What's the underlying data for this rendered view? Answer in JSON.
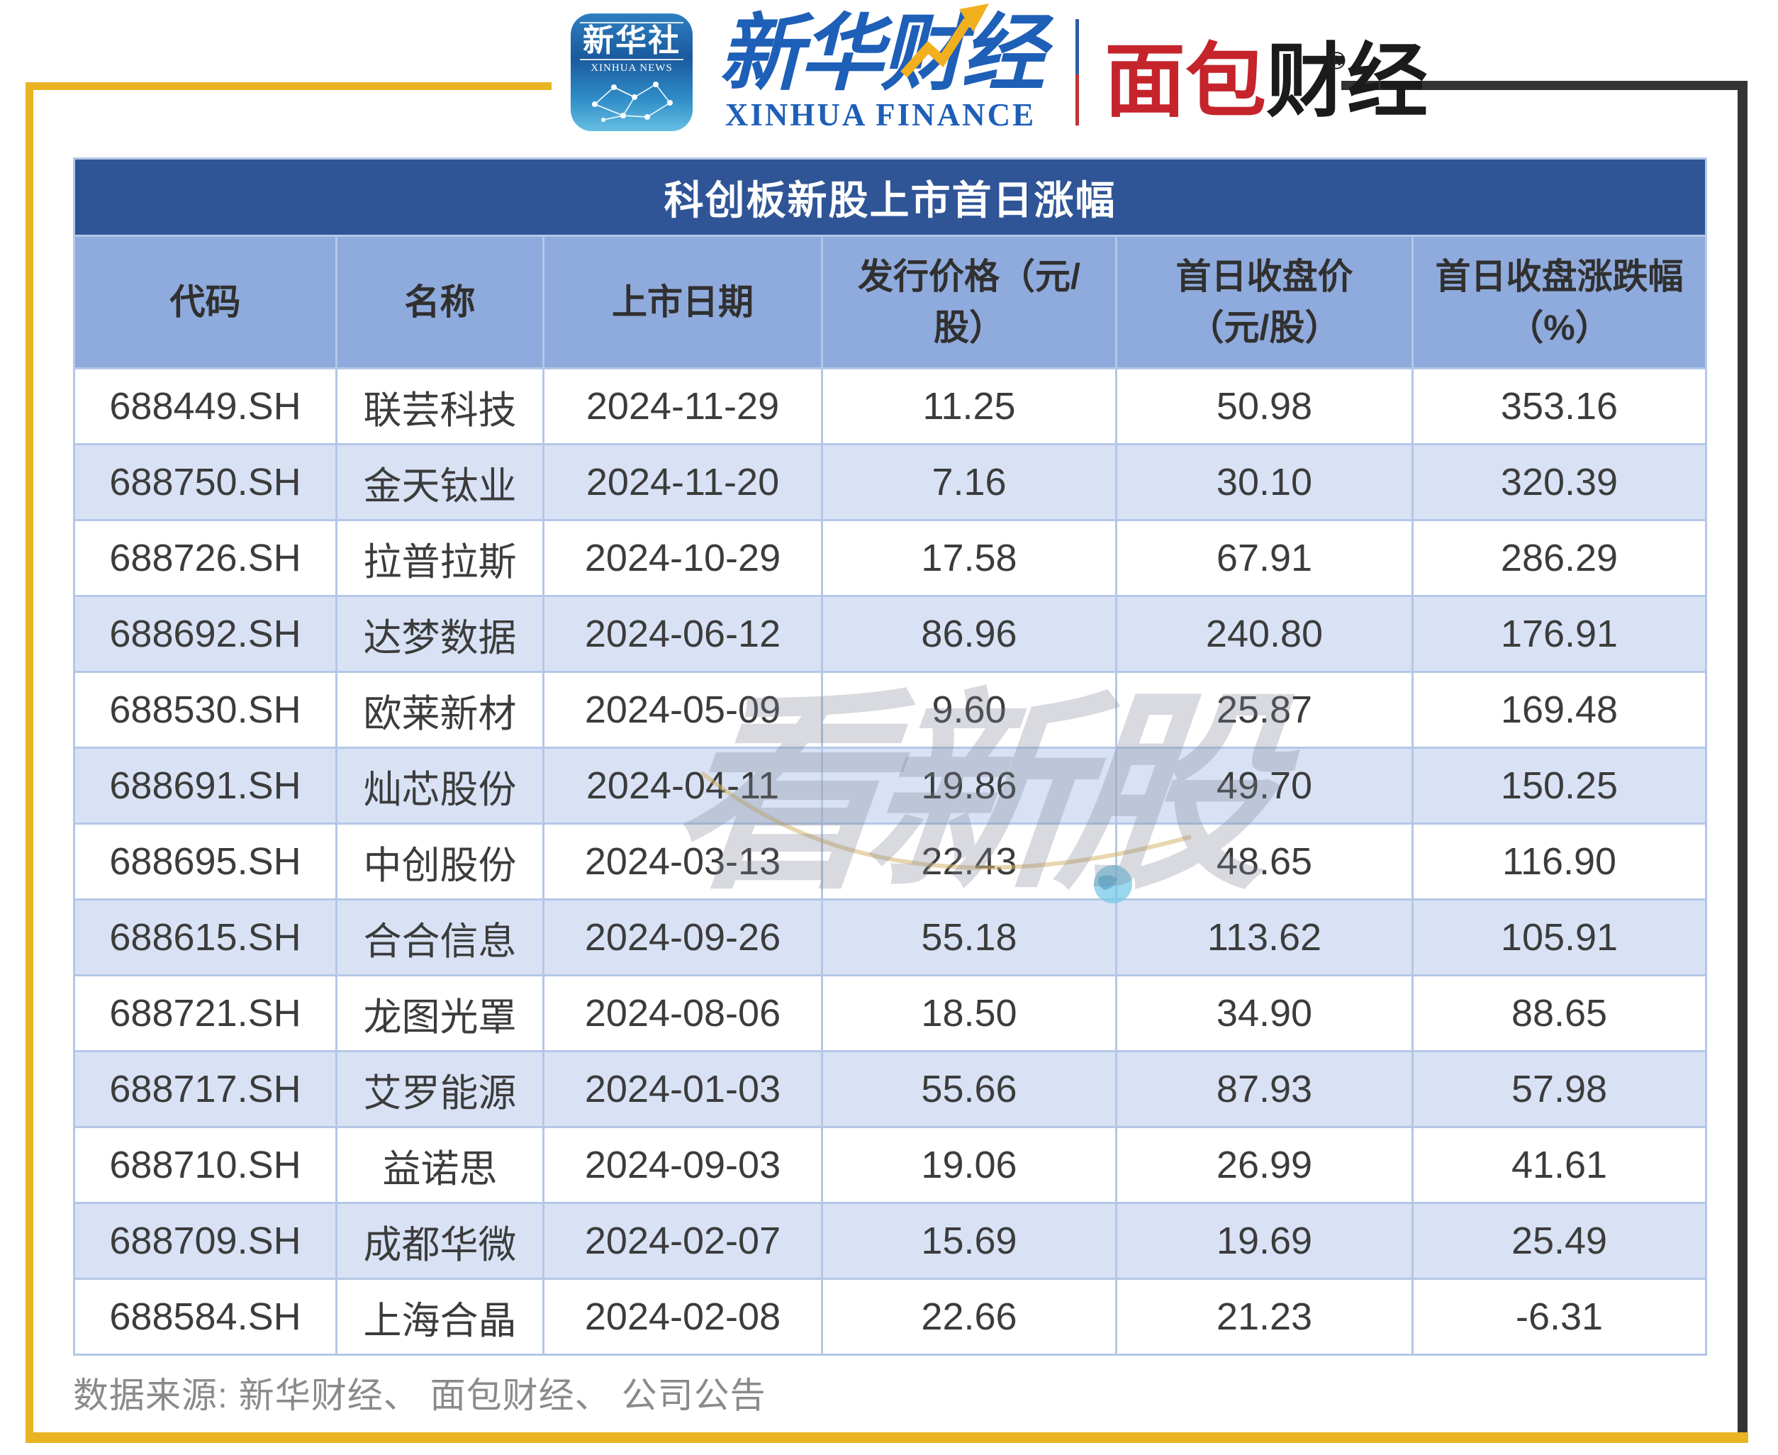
{
  "brand": {
    "xinhua_icon": {
      "cn": "新华社",
      "en": "XINHUA NEWS"
    },
    "xinhua_finance": {
      "cn": "新华财经",
      "en": "XINHUA FINANCE"
    },
    "bread_finance": {
      "red": "面包",
      "black": "财经",
      "reg": "®"
    }
  },
  "table": {
    "title": "科创板新股上市首日涨幅",
    "columns": [
      {
        "line1": "代码",
        "line2": ""
      },
      {
        "line1": "名称",
        "line2": ""
      },
      {
        "line1": "上市日期",
        "line2": ""
      },
      {
        "line1": "发行价格（元/",
        "line2": "股）"
      },
      {
        "line1": "首日收盘价",
        "line2": "（元/股）"
      },
      {
        "line1": "首日收盘涨跌幅",
        "line2": "（%）"
      }
    ],
    "rows": [
      {
        "code": "688449.SH",
        "name": "联芸科技",
        "date": "2024-11-29",
        "issue_price": "11.25",
        "first_day_close": "50.98",
        "first_day_change": "353.16"
      },
      {
        "code": "688750.SH",
        "name": "金天钛业",
        "date": "2024-11-20",
        "issue_price": "7.16",
        "first_day_close": "30.10",
        "first_day_change": "320.39"
      },
      {
        "code": "688726.SH",
        "name": "拉普拉斯",
        "date": "2024-10-29",
        "issue_price": "17.58",
        "first_day_close": "67.91",
        "first_day_change": "286.29"
      },
      {
        "code": "688692.SH",
        "name": "达梦数据",
        "date": "2024-06-12",
        "issue_price": "86.96",
        "first_day_close": "240.80",
        "first_day_change": "176.91"
      },
      {
        "code": "688530.SH",
        "name": "欧莱新材",
        "date": "2024-05-09",
        "issue_price": "9.60",
        "first_day_close": "25.87",
        "first_day_change": "169.48"
      },
      {
        "code": "688691.SH",
        "name": "灿芯股份",
        "date": "2024-04-11",
        "issue_price": "19.86",
        "first_day_close": "49.70",
        "first_day_change": "150.25"
      },
      {
        "code": "688695.SH",
        "name": "中创股份",
        "date": "2024-03-13",
        "issue_price": "22.43",
        "first_day_close": "48.65",
        "first_day_change": "116.90"
      },
      {
        "code": "688615.SH",
        "name": "合合信息",
        "date": "2024-09-26",
        "issue_price": "55.18",
        "first_day_close": "113.62",
        "first_day_change": "105.91"
      },
      {
        "code": "688721.SH",
        "name": "龙图光罩",
        "date": "2024-08-06",
        "issue_price": "18.50",
        "first_day_close": "34.90",
        "first_day_change": "88.65"
      },
      {
        "code": "688717.SH",
        "name": "艾罗能源",
        "date": "2024-01-03",
        "issue_price": "55.66",
        "first_day_close": "87.93",
        "first_day_change": "57.98"
      },
      {
        "code": "688710.SH",
        "name": "益诺思",
        "date": "2024-09-03",
        "issue_price": "19.06",
        "first_day_close": "26.99",
        "first_day_change": "41.61"
      },
      {
        "code": "688709.SH",
        "name": "成都华微",
        "date": "2024-02-07",
        "issue_price": "15.69",
        "first_day_close": "19.69",
        "first_day_change": "25.49"
      },
      {
        "code": "688584.SH",
        "name": "上海合晶",
        "date": "2024-02-08",
        "issue_price": "22.66",
        "first_day_close": "21.23",
        "first_day_change": "-6.31"
      }
    ]
  },
  "watermark": {
    "text": "看新股"
  },
  "footer": {
    "source": "数据来源: 新华财经、 面包财经、 公司公告"
  },
  "colors": {
    "accent_gold": "#E8B423",
    "accent_dark": "#343434",
    "title_bg": "#2F5597",
    "header_bg": "#8FAADC",
    "row_alt_bg": "#D9E2F5",
    "grid": "#B4C7E7",
    "brand_blue": "#1E5FB8",
    "brand_red": "#C5242B",
    "body_text": "#3C3C3C",
    "footer_text": "#8A8A8A"
  },
  "chart_data": {
    "type": "table",
    "title": "科创板新股上市首日涨幅",
    "columns": [
      "代码",
      "名称",
      "上市日期",
      "发行价格（元/股）",
      "首日收盘价（元/股）",
      "首日收盘涨跌幅（%）"
    ],
    "rows": [
      [
        "688449.SH",
        "联芸科技",
        "2024-11-29",
        11.25,
        50.98,
        353.16
      ],
      [
        "688750.SH",
        "金天钛业",
        "2024-11-20",
        7.16,
        30.1,
        320.39
      ],
      [
        "688726.SH",
        "拉普拉斯",
        "2024-10-29",
        17.58,
        67.91,
        286.29
      ],
      [
        "688692.SH",
        "达梦数据",
        "2024-06-12",
        86.96,
        240.8,
        176.91
      ],
      [
        "688530.SH",
        "欧莱新材",
        "2024-05-09",
        9.6,
        25.87,
        169.48
      ],
      [
        "688691.SH",
        "灿芯股份",
        "2024-04-11",
        19.86,
        49.7,
        150.25
      ],
      [
        "688695.SH",
        "中创股份",
        "2024-03-13",
        22.43,
        48.65,
        116.9
      ],
      [
        "688615.SH",
        "合合信息",
        "2024-09-26",
        55.18,
        113.62,
        105.91
      ],
      [
        "688721.SH",
        "龙图光罩",
        "2024-08-06",
        18.5,
        34.9,
        88.65
      ],
      [
        "688717.SH",
        "艾罗能源",
        "2024-01-03",
        55.66,
        87.93,
        57.98
      ],
      [
        "688710.SH",
        "益诺思",
        "2024-09-03",
        19.06,
        26.99,
        41.61
      ],
      [
        "688709.SH",
        "成都华微",
        "2024-02-07",
        15.69,
        19.69,
        25.49
      ],
      [
        "688584.SH",
        "上海合晶",
        "2024-02-08",
        22.66,
        21.23,
        -6.31
      ]
    ]
  }
}
